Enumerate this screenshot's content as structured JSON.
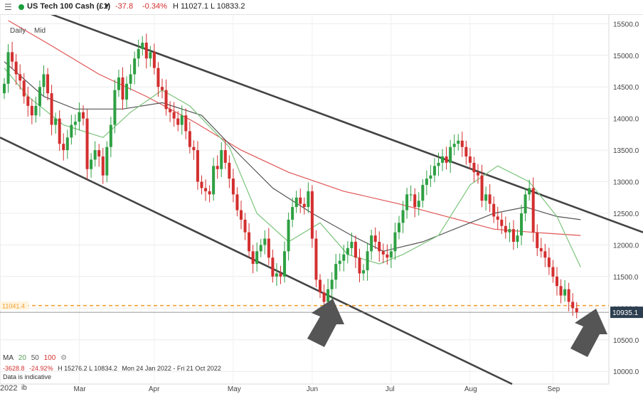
{
  "header": {
    "instrument": "US Tech 100 Cash (£1)",
    "change": "-37.8",
    "change_pct": "-0.34%",
    "high_low": "H 11027.1  L 10833.2",
    "status_color": "#1a9e3c"
  },
  "overlay": {
    "timeframe1": "Daily",
    "timeframe2": "Mid",
    "ma_label": "MA",
    "ma_20": "20",
    "ma_50": "50",
    "ma_100": "100",
    "stats_change": "-3628.8",
    "stats_pct": "-24.92%",
    "stats_hl": "H 15276.2  L 10834.2",
    "stats_range": "Mon 24 Jan 2022 - Fri 21 Oct 2022",
    "disclaimer": "Data is indicative",
    "year_label": "2022",
    "feb_fragment": "ib"
  },
  "colors": {
    "up": "#2ea043",
    "down": "#d32f2f",
    "ma20": "#7cc47c",
    "ma50": "#555555",
    "ma100": "#e05555",
    "trendline": "#444444",
    "support": "#f0a030",
    "price_tag": "#2c3e50",
    "arrow": "#555555"
  },
  "chart_data": {
    "type": "candlestick",
    "y_axis": {
      "min": 9800,
      "max": 15650,
      "ticks": [
        10000,
        10500,
        11000,
        11500,
        12000,
        12500,
        13000,
        13500,
        14000,
        14500,
        15000,
        15500
      ],
      "tick_labels": [
        "10000.0",
        "10500.0",
        "11000.0",
        "11500.0",
        "12000.0",
        "12500.0",
        "13000.0",
        "13500.0",
        "14000.0",
        "14500.0",
        "15000.0",
        "15500.0"
      ]
    },
    "x_axis": {
      "months": [
        "Mar",
        "Apr",
        "May",
        "Jun",
        "Jul",
        "Aug",
        "Sep"
      ],
      "month_start_index": [
        19,
        38,
        58,
        78,
        98,
        118,
        139
      ]
    },
    "support_level": 11041.4,
    "support_label": "11041.4",
    "last_price": 10935.1,
    "last_price_label": "10935.1",
    "closes": [
      14550,
      15050,
      14900,
      14700,
      14600,
      14350,
      14200,
      14050,
      14200,
      14500,
      14700,
      14400,
      13900,
      14000,
      13600,
      13500,
      13700,
      13900,
      13950,
      14100,
      14000,
      13200,
      13350,
      13500,
      13400,
      13100,
      13550,
      13900,
      14450,
      14650,
      14300,
      14550,
      14700,
      14950,
      15100,
      15200,
      14950,
      15050,
      14800,
      14500,
      14450,
      14150,
      14100,
      14000,
      13900,
      14050,
      13800,
      13550,
      13500,
      13000,
      12900,
      12850,
      12800,
      13250,
      13200,
      13500,
      13300,
      13050,
      12800,
      12550,
      12400,
      12200,
      11900,
      11700,
      11900,
      12000,
      12100,
      11800,
      11500,
      11550,
      11500,
      11900,
      12400,
      12600,
      12750,
      12650,
      12600,
      12850,
      12100,
      11450,
      11250,
      11100,
      11300,
      11450,
      11700,
      11750,
      11850,
      11950,
      12050,
      11800,
      11550,
      11600,
      11900,
      12150,
      12050,
      11900,
      11850,
      11800,
      11900,
      12200,
      12350,
      12550,
      12800,
      12800,
      12600,
      12700,
      12950,
      13050,
      13100,
      13250,
      13300,
      13400,
      13300,
      13550,
      13600,
      13650,
      13550,
      13400,
      13300,
      13150,
      13100,
      12700,
      12800,
      12650,
      12450,
      12400,
      12300,
      12200,
      12250,
      12050,
      12150,
      12500,
      12800,
      12900,
      12200,
      11950,
      11900,
      11800,
      11650,
      11500,
      11350,
      11200,
      11300,
      11100,
      11000,
      10935
    ],
    "ma20": [
      [
        0,
        14800
      ],
      [
        6,
        14350
      ],
      [
        15,
        13900
      ],
      [
        25,
        13700
      ],
      [
        32,
        14100
      ],
      [
        40,
        14450
      ],
      [
        47,
        14200
      ],
      [
        57,
        13550
      ],
      [
        64,
        12500
      ],
      [
        72,
        12050
      ],
      [
        80,
        12350
      ],
      [
        87,
        11850
      ],
      [
        95,
        11700
      ],
      [
        101,
        11850
      ],
      [
        110,
        12150
      ],
      [
        118,
        12950
      ],
      [
        125,
        13250
      ],
      [
        133,
        13000
      ],
      [
        140,
        12450
      ],
      [
        146,
        11650
      ]
    ],
    "ma50": [
      [
        0,
        14900
      ],
      [
        10,
        14350
      ],
      [
        18,
        14150
      ],
      [
        30,
        14150
      ],
      [
        40,
        14250
      ],
      [
        50,
        14050
      ],
      [
        60,
        13400
      ],
      [
        68,
        12900
      ],
      [
        78,
        12500
      ],
      [
        88,
        12150
      ],
      [
        96,
        11900
      ],
      [
        106,
        12050
      ],
      [
        114,
        12250
      ],
      [
        124,
        12500
      ],
      [
        132,
        12600
      ],
      [
        140,
        12450
      ],
      [
        146,
        12400
      ]
    ],
    "ma100": [
      [
        1,
        15550
      ],
      [
        12,
        15150
      ],
      [
        24,
        14700
      ],
      [
        36,
        14350
      ],
      [
        48,
        13950
      ],
      [
        60,
        13500
      ],
      [
        72,
        13150
      ],
      [
        86,
        12850
      ],
      [
        100,
        12650
      ],
      [
        112,
        12450
      ],
      [
        124,
        12250
      ],
      [
        134,
        12200
      ],
      [
        146,
        12150
      ]
    ]
  }
}
